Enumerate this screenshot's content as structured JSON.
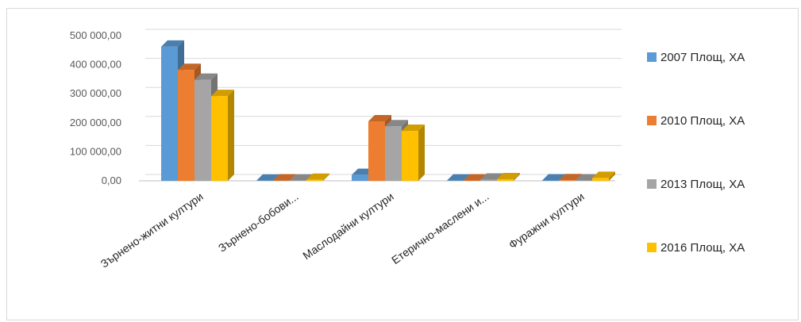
{
  "chart_data": {
    "type": "bar",
    "style": "3d-clustered-column",
    "categories": [
      "Зърнено-житни култури",
      "Зърнено-бобови...",
      "Маслодайни култури",
      "Етерично-маслени и...",
      "Фуражни култури"
    ],
    "series": [
      {
        "name": "2007 Площ, ХА",
        "color": "#5B9BD5",
        "values": [
          462000,
          800,
          20000,
          1000,
          1500
        ]
      },
      {
        "name": "2010 Площ, ХА",
        "color": "#ED7D31",
        "values": [
          382000,
          1200,
          205000,
          1500,
          2000
        ]
      },
      {
        "name": "2013 Площ, ХА",
        "color": "#A5A5A5",
        "values": [
          348000,
          1000,
          188000,
          4000,
          1500
        ]
      },
      {
        "name": "2016 Площ, ХА",
        "color": "#FFC000",
        "values": [
          292000,
          3500,
          172000,
          5500,
          10000
        ]
      }
    ],
    "y_ticks": [
      "0,00",
      "100 000,00",
      "200 000,00",
      "300 000,00",
      "400 000,00",
      "500 000,00"
    ],
    "ylim": [
      0,
      500000
    ],
    "grid": true,
    "legend_position": "right"
  }
}
